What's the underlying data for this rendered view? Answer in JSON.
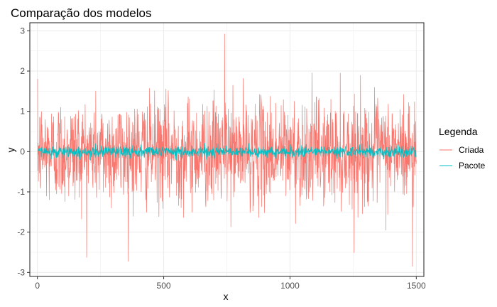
{
  "chart_data": {
    "type": "line",
    "title": "Comparação dos modelos",
    "xlabel": "x",
    "ylabel": "y",
    "xlim": [
      -30,
      1530
    ],
    "ylim": [
      -3.1,
      3.2
    ],
    "x_ticks": [
      0,
      500,
      1000,
      1500
    ],
    "y_ticks": [
      -3,
      -2,
      -1,
      0,
      1,
      2,
      3
    ],
    "grid": true,
    "legend_title": "Legenda",
    "legend_position": "right",
    "series": [
      {
        "name": "Criada",
        "color": "#F8766D",
        "x_start": 1,
        "x_step": 1,
        "n_points": 1500,
        "summary": {
          "min": -2.85,
          "max": 2.92,
          "mean": 0.0,
          "approx_sd": 0.65,
          "min_at_x": 1485,
          "max_at_x": 741
        }
      },
      {
        "name": "Pacote",
        "color": "#00BFC4",
        "x_start": 1,
        "x_step": 1,
        "n_points": 1500,
        "summary": {
          "min": -0.22,
          "max": 0.25,
          "mean": 0.0,
          "approx_sd": 0.07
        }
      }
    ]
  }
}
